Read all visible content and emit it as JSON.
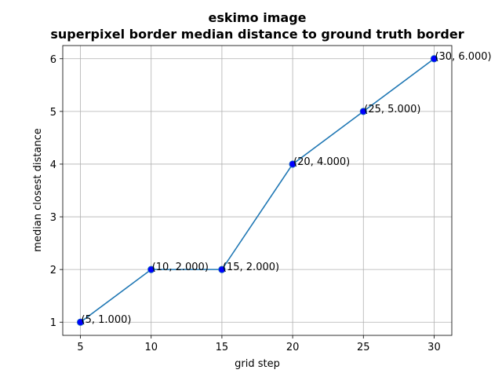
{
  "chart_data": {
    "type": "line",
    "title_line1": "eskimo image",
    "title_line2": "superpixel border median distance to ground truth border",
    "xlabel": "grid step",
    "ylabel": "median closest distance",
    "x": [
      5,
      10,
      15,
      20,
      25,
      30
    ],
    "y": [
      1.0,
      2.0,
      2.0,
      4.0,
      5.0,
      6.0
    ],
    "annotations": [
      "(5, 1.000)",
      "(10, 2.000)",
      "(15, 2.000)",
      "(20, 4.000)",
      "(25, 5.000)",
      "(30, 6.000)"
    ],
    "xticks": [
      5,
      10,
      15,
      20,
      25,
      30
    ],
    "yticks": [
      1,
      2,
      3,
      4,
      5,
      6
    ],
    "xlim": [
      3.75,
      31.25
    ],
    "ylim": [
      0.75,
      6.25
    ],
    "grid": true,
    "line_color": "#1f77b4",
    "marker_color": "#0000ff"
  }
}
